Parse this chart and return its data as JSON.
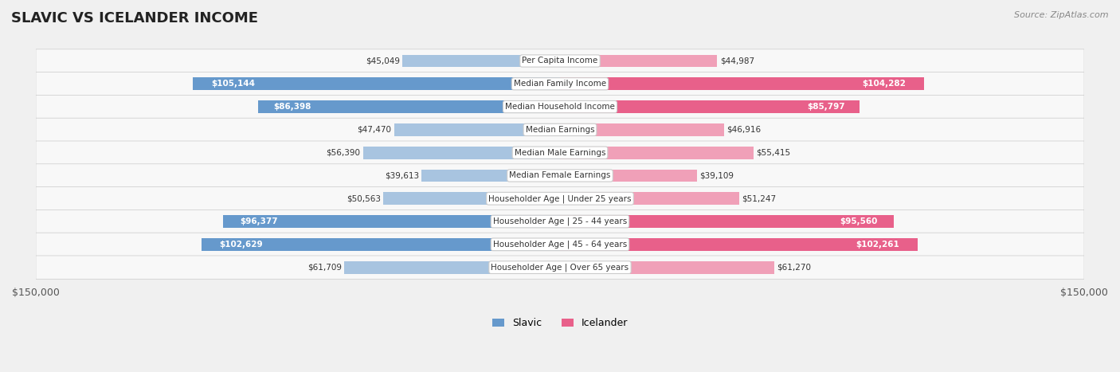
{
  "title": "SLAVIC VS ICELANDER INCOME",
  "source": "Source: ZipAtlas.com",
  "categories": [
    "Per Capita Income",
    "Median Family Income",
    "Median Household Income",
    "Median Earnings",
    "Median Male Earnings",
    "Median Female Earnings",
    "Householder Age | Under 25 years",
    "Householder Age | 25 - 44 years",
    "Householder Age | 45 - 64 years",
    "Householder Age | Over 65 years"
  ],
  "slavic_values": [
    45049,
    105144,
    86398,
    47470,
    56390,
    39613,
    50563,
    96377,
    102629,
    61709
  ],
  "icelander_values": [
    44987,
    104282,
    85797,
    46916,
    55415,
    39109,
    51247,
    95560,
    102261,
    61270
  ],
  "slavic_labels": [
    "$45,049",
    "$105,144",
    "$86,398",
    "$47,470",
    "$56,390",
    "$39,613",
    "$50,563",
    "$96,377",
    "$102,629",
    "$61,709"
  ],
  "icelander_labels": [
    "$44,987",
    "$104,282",
    "$85,797",
    "$46,916",
    "$55,415",
    "$39,109",
    "$51,247",
    "$95,560",
    "$102,261",
    "$61,270"
  ],
  "max_value": 150000,
  "slavic_bar_color_light": "#a8c4e0",
  "slavic_bar_color_dark": "#6699cc",
  "icelander_bar_color_light": "#f0a0b8",
  "icelander_bar_color_dark": "#e8608a",
  "label_color_light": "#333333",
  "label_color_dark": "#ffffff",
  "bg_color": "#f0f0f0",
  "row_bg_color": "#f8f8f8",
  "center_label_bg": "#ffffff",
  "threshold_dark_slavic": 80000,
  "threshold_dark_icelander": 80000
}
